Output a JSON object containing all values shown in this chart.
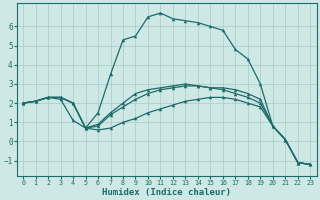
{
  "xlabel": "Humidex (Indice chaleur)",
  "background_color": "#cde8e5",
  "grid_color": "#b0d0cc",
  "line_color": "#1e6b6b",
  "xlim": [
    -0.5,
    23.5
  ],
  "ylim": [
    -1.8,
    7.2
  ],
  "yticks": [
    -1,
    0,
    1,
    2,
    3,
    4,
    5,
    6
  ],
  "xticks": [
    0,
    1,
    2,
    3,
    4,
    5,
    6,
    7,
    8,
    9,
    10,
    11,
    12,
    13,
    14,
    15,
    16,
    17,
    18,
    19,
    20,
    21,
    22,
    23
  ],
  "line1_x": [
    0,
    1,
    2,
    3,
    4,
    5,
    6,
    7,
    8,
    9,
    10,
    11,
    12,
    13,
    14,
    15,
    16,
    17,
    18,
    19,
    20,
    21,
    22,
    23
  ],
  "line1_y": [
    2.0,
    2.1,
    2.3,
    2.3,
    2.0,
    0.7,
    1.5,
    3.5,
    5.3,
    5.5,
    6.5,
    6.7,
    6.4,
    6.3,
    6.2,
    6.0,
    5.8,
    4.8,
    4.3,
    3.0,
    0.8,
    0.1,
    -1.1,
    -1.2
  ],
  "line2_x": [
    0,
    1,
    2,
    3,
    4,
    5,
    6,
    7,
    8,
    9,
    10,
    11,
    12,
    13,
    14,
    15,
    16,
    17,
    18,
    19,
    20,
    21,
    22,
    23
  ],
  "line2_y": [
    2.0,
    2.1,
    2.3,
    2.3,
    2.0,
    0.7,
    0.9,
    1.5,
    2.0,
    2.5,
    2.7,
    2.8,
    2.9,
    3.0,
    2.9,
    2.8,
    2.8,
    2.7,
    2.5,
    2.2,
    0.8,
    0.1,
    -1.1,
    -1.2
  ],
  "line3_x": [
    0,
    1,
    2,
    3,
    4,
    5,
    6,
    7,
    8,
    9,
    10,
    11,
    12,
    13,
    14,
    15,
    16,
    17,
    18,
    19,
    20,
    21,
    22,
    23
  ],
  "line3_y": [
    2.0,
    2.1,
    2.3,
    2.2,
    1.1,
    0.7,
    0.8,
    1.4,
    1.8,
    2.2,
    2.5,
    2.7,
    2.8,
    2.9,
    2.9,
    2.8,
    2.7,
    2.5,
    2.3,
    2.0,
    0.8,
    0.1,
    -1.1,
    -1.2
  ],
  "line4_x": [
    0,
    1,
    2,
    3,
    4,
    5,
    6,
    7,
    8,
    9,
    10,
    11,
    12,
    13,
    14,
    15,
    16,
    17,
    18,
    19,
    20,
    21,
    22,
    23
  ],
  "line4_y": [
    2.0,
    2.1,
    2.3,
    2.3,
    2.0,
    0.7,
    0.6,
    0.7,
    1.0,
    1.2,
    1.5,
    1.7,
    1.9,
    2.1,
    2.2,
    2.3,
    2.3,
    2.2,
    2.0,
    1.8,
    0.8,
    0.1,
    -1.1,
    -1.2
  ],
  "markersize": 2.5,
  "linewidth": 0.9
}
